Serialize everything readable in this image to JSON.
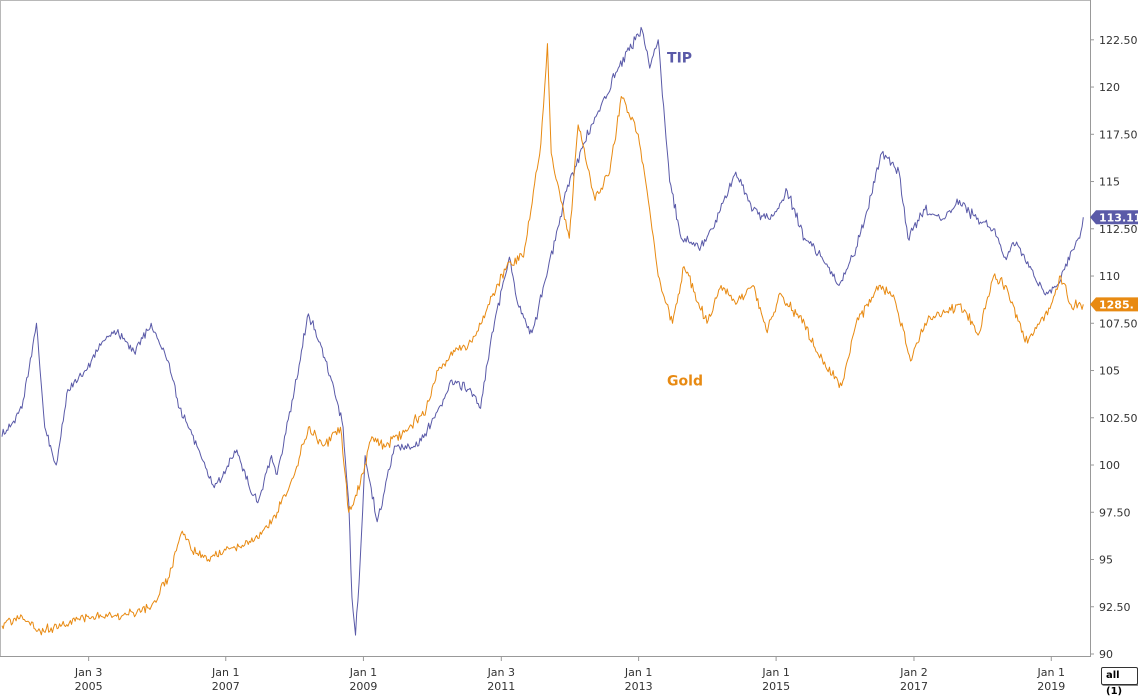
{
  "chart_data": {
    "type": "line",
    "x_axis": {
      "ticks": [
        {
          "month": "Jan 3",
          "year": "2005",
          "date": "2005-01-03"
        },
        {
          "month": "Jan 1",
          "year": "2007",
          "date": "2007-01-01"
        },
        {
          "month": "Jan 1",
          "year": "2009",
          "date": "2009-01-01"
        },
        {
          "month": "Jan 3",
          "year": "2011",
          "date": "2011-01-03"
        },
        {
          "month": "Jan 1",
          "year": "2013",
          "date": "2013-01-01"
        },
        {
          "month": "Jan 1",
          "year": "2015",
          "date": "2015-01-01"
        },
        {
          "month": "Jan 2",
          "year": "2017",
          "date": "2017-01-02"
        },
        {
          "month": "Jan 1",
          "year": "2019",
          "date": "2019-01-01"
        }
      ],
      "range": [
        "2003-10-01",
        "2019-07-15"
      ]
    },
    "y_axis": {
      "position": "right",
      "range": [
        90,
        124.5
      ],
      "ticks": [
        "90",
        "92.50",
        "95",
        "97.50",
        "100",
        "102.50",
        "105",
        "107.50",
        "110",
        "112.50",
        "115",
        "117.50",
        "120",
        "122.50"
      ],
      "tick_values": [
        90,
        92.5,
        95,
        97.5,
        100,
        102.5,
        105,
        107.5,
        110,
        112.5,
        115,
        117.5,
        120,
        122.5
      ]
    },
    "grid": false,
    "series": [
      {
        "name": "TIP",
        "color": "#5a5aa8",
        "end_value": "113.11",
        "label_point": [
          "2013-06-01",
          121.3
        ],
        "points": [
          [
            "2003-10-01",
            101.5
          ],
          [
            "2004-01-15",
            103.0
          ],
          [
            "2004-04-01",
            107.5
          ],
          [
            "2004-05-15",
            102.0
          ],
          [
            "2004-07-15",
            100.0
          ],
          [
            "2004-09-15",
            104.0
          ],
          [
            "2004-12-15",
            105.0
          ],
          [
            "2005-03-15",
            106.5
          ],
          [
            "2005-06-01",
            107.0
          ],
          [
            "2005-09-01",
            106.0
          ],
          [
            "2005-12-01",
            107.5
          ],
          [
            "2006-03-01",
            105.5
          ],
          [
            "2006-05-01",
            103.0
          ],
          [
            "2006-08-01",
            101.0
          ],
          [
            "2006-11-01",
            98.8
          ],
          [
            "2007-03-01",
            100.8
          ],
          [
            "2007-05-01",
            99.0
          ],
          [
            "2007-06-20",
            98.0
          ],
          [
            "2007-09-01",
            100.5
          ],
          [
            "2007-10-01",
            99.5
          ],
          [
            "2008-01-01",
            104.0
          ],
          [
            "2008-03-15",
            108.0
          ],
          [
            "2008-05-15",
            106.5
          ],
          [
            "2008-07-15",
            104.5
          ],
          [
            "2008-09-15",
            102.0
          ],
          [
            "2008-10-15",
            98.0
          ],
          [
            "2008-11-01",
            93.0
          ],
          [
            "2008-11-20",
            91.0
          ],
          [
            "2008-12-15",
            95.0
          ],
          [
            "2009-01-10",
            100.5
          ],
          [
            "2009-03-15",
            97.0
          ],
          [
            "2009-06-15",
            101.0
          ],
          [
            "2009-10-15",
            101.0
          ],
          [
            "2010-01-15",
            102.5
          ],
          [
            "2010-04-15",
            104.5
          ],
          [
            "2010-07-15",
            104.0
          ],
          [
            "2010-09-15",
            103.0
          ],
          [
            "2010-11-15",
            107.0
          ],
          [
            "2011-02-15",
            111.0
          ],
          [
            "2011-04-01",
            108.5
          ],
          [
            "2011-06-15",
            107.0
          ],
          [
            "2011-09-01",
            110.0
          ],
          [
            "2011-12-15",
            114.5
          ],
          [
            "2012-03-15",
            117.0
          ],
          [
            "2012-06-15",
            119.0
          ],
          [
            "2012-09-15",
            121.0
          ],
          [
            "2012-12-15",
            122.5
          ],
          [
            "2013-01-20",
            123.0
          ],
          [
            "2013-03-01",
            121.0
          ],
          [
            "2013-04-15",
            122.5
          ],
          [
            "2013-05-01",
            120.5
          ],
          [
            "2013-06-15",
            115.0
          ],
          [
            "2013-08-15",
            112.0
          ],
          [
            "2013-11-15",
            111.5
          ],
          [
            "2014-02-01",
            112.5
          ],
          [
            "2014-06-01",
            115.5
          ],
          [
            "2014-09-01",
            113.5
          ],
          [
            "2014-12-01",
            113.0
          ],
          [
            "2015-03-01",
            114.5
          ],
          [
            "2015-06-01",
            112.0
          ],
          [
            "2015-09-01",
            111.0
          ],
          [
            "2015-12-01",
            109.5
          ],
          [
            "2016-03-01",
            111.5
          ],
          [
            "2016-05-01",
            113.5
          ],
          [
            "2016-07-15",
            116.5
          ],
          [
            "2016-10-15",
            115.5
          ],
          [
            "2016-12-01",
            112.0
          ],
          [
            "2017-03-01",
            113.5
          ],
          [
            "2017-06-01",
            113.0
          ],
          [
            "2017-09-01",
            114.0
          ],
          [
            "2017-12-01",
            113.0
          ],
          [
            "2018-03-01",
            112.5
          ],
          [
            "2018-05-01",
            111.0
          ],
          [
            "2018-07-01",
            111.8
          ],
          [
            "2018-10-01",
            110.0
          ],
          [
            "2018-12-01",
            109.0
          ],
          [
            "2019-02-01",
            109.5
          ],
          [
            "2019-04-01",
            111.0
          ],
          [
            "2019-06-01",
            112.0
          ],
          [
            "2019-06-20",
            113.11
          ]
        ]
      },
      {
        "name": "Gold",
        "color": "#e88a12",
        "end_value": "1285.",
        "label_point": [
          "2013-06-01",
          104.2
        ],
        "points": [
          [
            "2003-10-01",
            91.5
          ],
          [
            "2004-01-15",
            92.0
          ],
          [
            "2004-04-01",
            91.2
          ],
          [
            "2004-07-01",
            91.4
          ],
          [
            "2005-01-01",
            92.0
          ],
          [
            "2005-06-01",
            92.0
          ],
          [
            "2005-12-01",
            92.5
          ],
          [
            "2006-03-01",
            94.0
          ],
          [
            "2006-05-15",
            96.5
          ],
          [
            "2006-07-01",
            95.5
          ],
          [
            "2006-10-01",
            95.0
          ],
          [
            "2007-01-01",
            95.5
          ],
          [
            "2007-06-01",
            96.0
          ],
          [
            "2007-10-01",
            97.5
          ],
          [
            "2008-01-01",
            99.5
          ],
          [
            "2008-03-15",
            102.0
          ],
          [
            "2008-06-01",
            101.0
          ],
          [
            "2008-09-01",
            102.0
          ],
          [
            "2008-10-15",
            97.5
          ],
          [
            "2008-12-15",
            99.0
          ],
          [
            "2009-02-15",
            101.5
          ],
          [
            "2009-05-01",
            101.0
          ],
          [
            "2009-09-01",
            102.0
          ],
          [
            "2009-12-01",
            103.0
          ],
          [
            "2010-02-01",
            105.0
          ],
          [
            "2010-05-01",
            106.0
          ],
          [
            "2010-08-01",
            106.5
          ],
          [
            "2010-11-01",
            108.5
          ],
          [
            "2011-02-01",
            110.5
          ],
          [
            "2011-05-01",
            111.0
          ],
          [
            "2011-08-01",
            117.0
          ],
          [
            "2011-09-05",
            122.3
          ],
          [
            "2011-09-25",
            116.5
          ],
          [
            "2011-12-30",
            112.0
          ],
          [
            "2012-02-15",
            118.0
          ],
          [
            "2012-05-15",
            114.0
          ],
          [
            "2012-08-01",
            115.5
          ],
          [
            "2012-10-01",
            119.5
          ],
          [
            "2012-12-30",
            117.5
          ],
          [
            "2013-02-15",
            114.5
          ],
          [
            "2013-04-15",
            110.0
          ],
          [
            "2013-06-30",
            107.5
          ],
          [
            "2013-08-30",
            110.5
          ],
          [
            "2013-12-30",
            107.5
          ],
          [
            "2014-03-15",
            109.5
          ],
          [
            "2014-06-01",
            108.5
          ],
          [
            "2014-09-01",
            109.5
          ],
          [
            "2014-11-15",
            107.0
          ],
          [
            "2015-01-15",
            109.0
          ],
          [
            "2015-06-01",
            107.5
          ],
          [
            "2015-08-01",
            106.0
          ],
          [
            "2015-12-15",
            104.2
          ],
          [
            "2016-03-01",
            107.5
          ],
          [
            "2016-07-01",
            109.5
          ],
          [
            "2016-09-15",
            109.0
          ],
          [
            "2016-12-15",
            105.5
          ],
          [
            "2017-03-01",
            107.5
          ],
          [
            "2017-06-01",
            108.0
          ],
          [
            "2017-09-01",
            108.5
          ],
          [
            "2017-12-15",
            107.0
          ],
          [
            "2018-03-01",
            110.0
          ],
          [
            "2018-05-01",
            109.5
          ],
          [
            "2018-08-15",
            106.5
          ],
          [
            "2018-10-01",
            107.0
          ],
          [
            "2019-01-01",
            108.5
          ],
          [
            "2019-02-20",
            110.0
          ],
          [
            "2019-04-15",
            108.5
          ],
          [
            "2019-06-20",
            108.5
          ]
        ]
      }
    ]
  },
  "controls": {
    "range_button": "all (1)"
  }
}
